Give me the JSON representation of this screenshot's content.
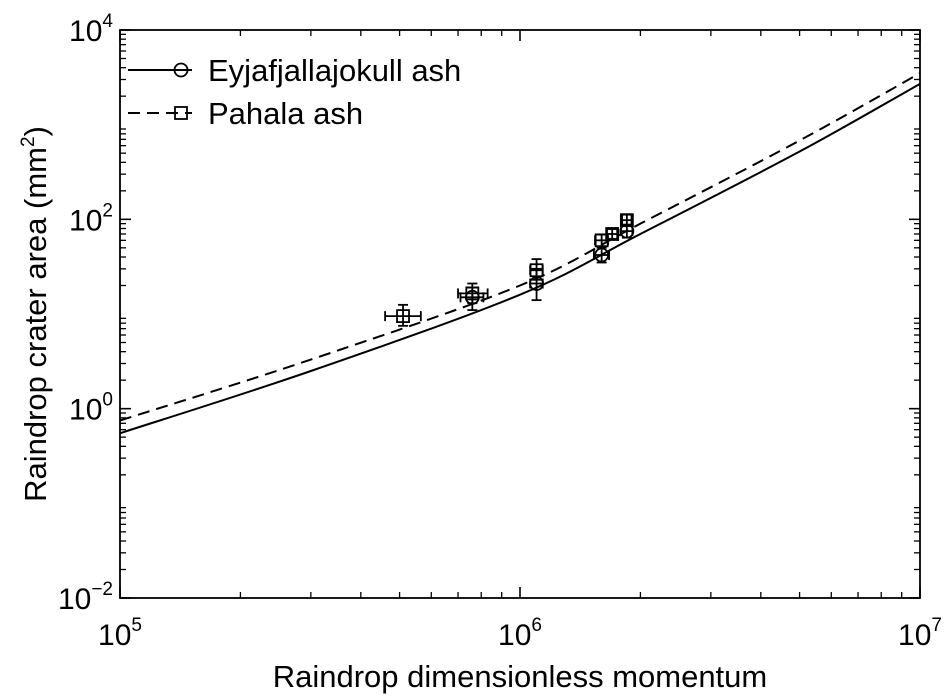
{
  "chart_data": {
    "type": "scatter",
    "title": "",
    "xlabel": "Raindrop dimensionless momentum",
    "ylabel": "Raindrop crater area (mm",
    "ylabel_sup": "2",
    "ylabel_close": ")",
    "xscale": "log",
    "yscale": "log",
    "xlim": [
      100000,
      10000000
    ],
    "ylim": [
      0.01,
      10000
    ],
    "grid": false,
    "legend_position": "top-left",
    "x_ticks": [
      {
        "value": 100000,
        "base": "10",
        "exp": "5"
      },
      {
        "value": 1000000,
        "base": "10",
        "exp": "6"
      },
      {
        "value": 10000000,
        "base": "10",
        "exp": "7"
      }
    ],
    "y_ticks": [
      {
        "value": 0.01,
        "base": "10",
        "exp": "−2"
      },
      {
        "value": 1,
        "base": "10",
        "exp": "0"
      },
      {
        "value": 100,
        "base": "10",
        "exp": "2"
      },
      {
        "value": 10000,
        "base": "10",
        "exp": "4"
      }
    ],
    "series": [
      {
        "name": "Eyjafjallajokull ash",
        "marker": "circle",
        "line_style": "solid",
        "curve": [
          {
            "x": 100000,
            "y": 0.55
          },
          {
            "x": 300000,
            "y": 2.5
          },
          {
            "x": 1000000,
            "y": 16
          },
          {
            "x": 2000000,
            "y": 70
          },
          {
            "x": 5000000,
            "y": 520
          },
          {
            "x": 10000000,
            "y": 2700
          }
        ],
        "points": [
          {
            "x": 760000,
            "y": 15,
            "xerr": [
              710000,
              810000
            ],
            "yerr": [
              11,
              19
            ]
          },
          {
            "x": 1100000,
            "y": 21,
            "xerr": [
              1060000,
              1140000
            ],
            "yerr": [
              14,
              30
            ]
          },
          {
            "x": 1600000,
            "y": 42,
            "xerr": [
              1530000,
              1670000
            ],
            "yerr": [
              35,
              50
            ]
          },
          {
            "x": 1850000,
            "y": 75,
            "xerr": [
              1790000,
              1910000
            ],
            "yerr": [
              64,
              88
            ]
          }
        ]
      },
      {
        "name": "Pahala ash",
        "marker": "square",
        "line_style": "dashed",
        "curve": [
          {
            "x": 100000,
            "y": 0.75
          },
          {
            "x": 300000,
            "y": 3.3
          },
          {
            "x": 1000000,
            "y": 20
          },
          {
            "x": 2000000,
            "y": 90
          },
          {
            "x": 5000000,
            "y": 680
          },
          {
            "x": 10000000,
            "y": 3500
          }
        ],
        "points": [
          {
            "x": 510000,
            "y": 9.5,
            "xerr": [
              460000,
              565000
            ],
            "yerr": [
              7.5,
              12.5
            ]
          },
          {
            "x": 760000,
            "y": 16.5,
            "xerr": [
              700000,
              830000
            ],
            "yerr": [
              13,
              21
            ]
          },
          {
            "x": 1100000,
            "y": 29,
            "xerr": [
              1060000,
              1140000
            ],
            "yerr": [
              23,
              38
            ]
          },
          {
            "x": 1600000,
            "y": 60,
            "xerr": [
              1540000,
              1660000
            ],
            "yerr": [
              52,
              69
            ]
          },
          {
            "x": 1700000,
            "y": 70,
            "xerr": [
              1650000,
              1750000
            ],
            "yerr": [
              62,
              79
            ]
          },
          {
            "x": 1850000,
            "y": 98,
            "xerr": [
              1800000,
              1900000
            ],
            "yerr": [
              86,
              112
            ]
          }
        ]
      }
    ]
  }
}
